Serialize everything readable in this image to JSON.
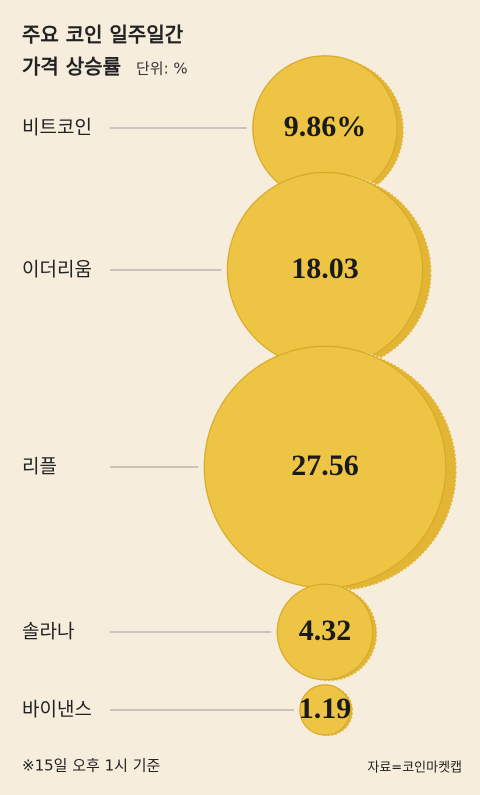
{
  "chart_data": {
    "type": "bubble",
    "title": "주요 코인 일주일간",
    "subtitle": "가격 상승률",
    "unit": "단위: %",
    "categories": [
      "비트코인",
      "이더리움",
      "리플",
      "솔라나",
      "바이낸스"
    ],
    "values": [
      9.86,
      18.03,
      27.56,
      4.32,
      1.19
    ],
    "value_labels": [
      "9.86%",
      "18.03",
      "27.56",
      "4.32",
      "1.19"
    ],
    "color": "#edc443",
    "note": "※15일 오후 1시 기준",
    "source": "자료=코인마켓캡"
  }
}
